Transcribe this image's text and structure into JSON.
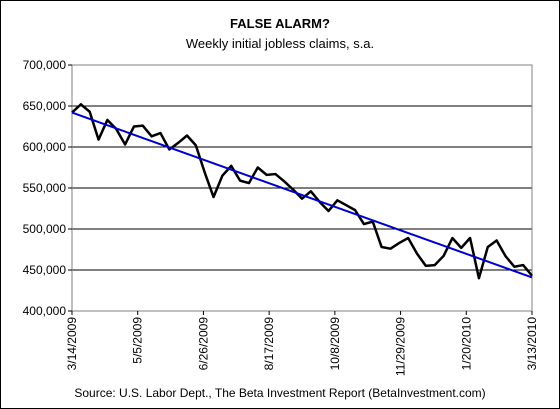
{
  "chart_data": {
    "type": "line",
    "title": "FALSE ALARM?",
    "subtitle": "Weekly initial jobless claims, s.a.",
    "source": "Source: U.S. Labor Dept., The Beta Investment Report (BetaInvestment.com)",
    "ylim": [
      400000,
      700000
    ],
    "y_ticks": [
      400000,
      450000,
      500000,
      550000,
      600000,
      650000,
      700000
    ],
    "y_tick_labels": [
      "400,000",
      "450,000",
      "500,000",
      "550,000",
      "600,000",
      "650,000",
      "700,000"
    ],
    "x_tick_labels": [
      "3/14/2009",
      "5/5/2009",
      "6/26/2009",
      "8/17/2009",
      "10/8/2009",
      "11/29/2009",
      "1/20/2010",
      "3/13/2010"
    ],
    "grid": "horizontal",
    "series": [
      {
        "values": [
          642000,
          652000,
          643000,
          609000,
          633000,
          622000,
          603000,
          625000,
          626000,
          613000,
          617000,
          597000,
          605000,
          614000,
          602000,
          569000,
          539000,
          565000,
          577000,
          559000,
          556000,
          575000,
          566000,
          567000,
          558000,
          548000,
          537000,
          546000,
          533000,
          522000,
          535000,
          529000,
          523000,
          506000,
          509000,
          478000,
          476000,
          483000,
          489000,
          470000,
          455000,
          456000,
          467000,
          489000,
          477000,
          489000,
          440000,
          478000,
          486000,
          467000,
          454000,
          456000,
          443000
        ],
        "color": "#000000"
      },
      {
        "values": [
          642000,
          441000
        ],
        "color": "#0000CC"
      }
    ]
  }
}
